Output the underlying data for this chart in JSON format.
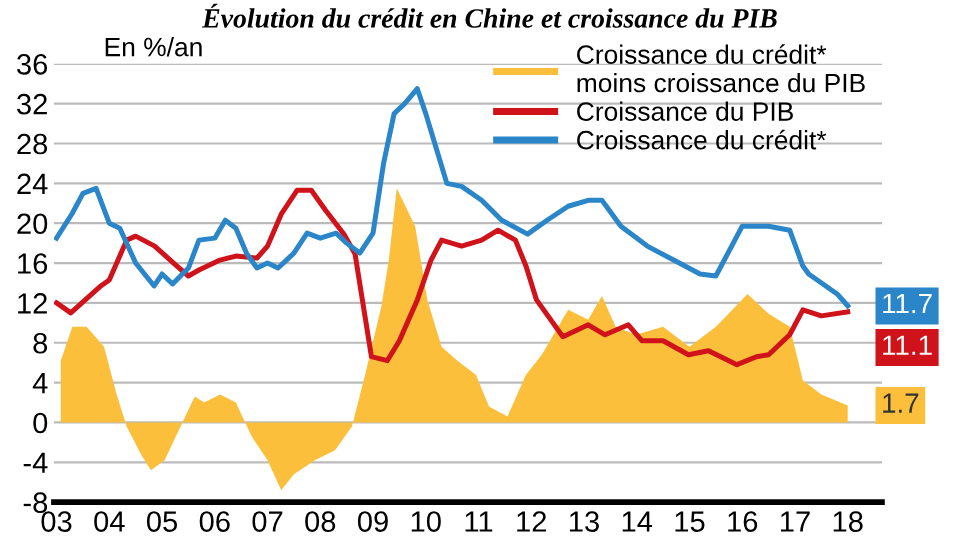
{
  "chart_data": {
    "type": "line",
    "title": "Évolution du crédit en Chine et croissance du PIB",
    "ylabel": "En %/an",
    "xlim": [
      2002.95,
      2018.65
    ],
    "ylim": [
      -8,
      36
    ],
    "xticks": [
      {
        "value": 2003,
        "label": "03"
      },
      {
        "value": 2004,
        "label": "04"
      },
      {
        "value": 2005,
        "label": "05"
      },
      {
        "value": 2006,
        "label": "06"
      },
      {
        "value": 2007,
        "label": "07"
      },
      {
        "value": 2008,
        "label": "08"
      },
      {
        "value": 2009,
        "label": "09"
      },
      {
        "value": 2010,
        "label": "10"
      },
      {
        "value": 2011,
        "label": "11"
      },
      {
        "value": 2012,
        "label": "12"
      },
      {
        "value": 2013,
        "label": "13"
      },
      {
        "value": 2014,
        "label": "14"
      },
      {
        "value": 2015,
        "label": "15"
      },
      {
        "value": 2016,
        "label": "16"
      },
      {
        "value": 2017,
        "label": "17"
      },
      {
        "value": 2018,
        "label": "18"
      }
    ],
    "yticks": [
      -8,
      -4,
      0,
      4,
      8,
      12,
      16,
      20,
      24,
      28,
      32,
      36
    ],
    "grid": "y",
    "legend": "top right",
    "line_style": "solid",
    "series": [
      {
        "name": "Croissance du crédit* moins croissance du PIB",
        "type": "area",
        "color": "#fbbf3c",
        "x": [
          2003.08,
          2003.3,
          2003.57,
          2003.9,
          2004.14,
          2004.33,
          2004.6,
          2004.79,
          2005.05,
          2005.28,
          2005.62,
          2005.8,
          2006.1,
          2006.4,
          2006.7,
          2007.0,
          2007.26,
          2007.5,
          2007.9,
          2008.28,
          2008.6,
          2008.85,
          2009.16,
          2009.3,
          2009.45,
          2009.8,
          2010.03,
          2010.3,
          2010.6,
          2010.95,
          2011.2,
          2011.55,
          2011.9,
          2012.2,
          2012.7,
          2013.08,
          2013.34,
          2013.6,
          2013.98,
          2014.5,
          2015.0,
          2015.5,
          2015.74,
          2016.1,
          2016.5,
          2016.9,
          2017.15,
          2017.5,
          2018.0
        ],
        "values": [
          6.2,
          9.6,
          9.6,
          7.6,
          2.8,
          -0.4,
          -3.2,
          -4.8,
          -3.8,
          -1.2,
          2.6,
          2.0,
          2.8,
          2.0,
          -1.4,
          -3.8,
          -6.8,
          -5.2,
          -3.8,
          -2.8,
          -0.4,
          4.8,
          11.7,
          16.3,
          23.5,
          19.7,
          12.3,
          7.6,
          6.2,
          4.8,
          1.6,
          0.6,
          4.8,
          6.8,
          11.3,
          10.3,
          12.7,
          9.6,
          8.8,
          9.6,
          7.6,
          9.6,
          10.9,
          12.9,
          10.9,
          9.6,
          4.2,
          2.8,
          1.7
        ],
        "value_labels": [
          null,
          null,
          null,
          null,
          null,
          null,
          null,
          null,
          null,
          null,
          null,
          null,
          null,
          null,
          null,
          null,
          null,
          null,
          null,
          null,
          null,
          null,
          null,
          null,
          null,
          null,
          null,
          null,
          null,
          null,
          null,
          null,
          null,
          null,
          null,
          null,
          null,
          null,
          null,
          null,
          null,
          null,
          null,
          null,
          null,
          null,
          null,
          null,
          "1.7"
        ]
      },
      {
        "name": "Croissance du PIB",
        "color": "#d0121b",
        "x": [
          2003.0,
          2003.27,
          2003.84,
          2004.0,
          2004.33,
          2004.5,
          2004.86,
          2005.24,
          2005.5,
          2005.7,
          2006.1,
          2006.4,
          2006.8,
          2007.0,
          2007.26,
          2007.56,
          2007.83,
          2008.1,
          2008.45,
          2008.66,
          2008.97,
          2009.27,
          2009.5,
          2009.84,
          2010.1,
          2010.3,
          2010.68,
          2011.06,
          2011.37,
          2011.7,
          2011.9,
          2012.1,
          2012.6,
          2013.08,
          2013.4,
          2013.84,
          2014.1,
          2014.5,
          2014.98,
          2015.36,
          2015.9,
          2016.27,
          2016.5,
          2016.9,
          2017.15,
          2017.5,
          2018.0
        ],
        "values": [
          12.0,
          11.0,
          13.7,
          14.3,
          18.3,
          18.7,
          17.7,
          15.9,
          14.7,
          15.3,
          16.3,
          16.7,
          16.5,
          17.7,
          20.9,
          23.3,
          23.3,
          21.3,
          18.9,
          16.9,
          6.6,
          6.2,
          8.2,
          12.3,
          16.3,
          18.3,
          17.7,
          18.3,
          19.3,
          18.3,
          15.7,
          12.3,
          8.6,
          9.8,
          8.8,
          9.8,
          8.2,
          8.2,
          6.8,
          7.2,
          5.8,
          6.6,
          6.8,
          8.8,
          11.3,
          10.7,
          11.1
        ],
        "value_labels": [
          null,
          null,
          null,
          null,
          null,
          null,
          null,
          null,
          null,
          null,
          null,
          null,
          null,
          null,
          null,
          null,
          null,
          null,
          null,
          null,
          null,
          null,
          null,
          null,
          null,
          null,
          null,
          null,
          null,
          null,
          null,
          null,
          null,
          null,
          null,
          null,
          null,
          null,
          null,
          null,
          null,
          null,
          null,
          null,
          null,
          null,
          "11.1"
        ]
      },
      {
        "name": "Croissance du crédit*",
        "color": "#2a86c8",
        "x": [
          2003.0,
          2003.3,
          2003.5,
          2003.75,
          2004.0,
          2004.2,
          2004.5,
          2004.85,
          2005.0,
          2005.2,
          2005.5,
          2005.7,
          2006.0,
          2006.2,
          2006.4,
          2006.6,
          2006.8,
          2007.0,
          2007.2,
          2007.5,
          2007.75,
          2008.0,
          2008.3,
          2008.5,
          2008.75,
          2009.0,
          2009.2,
          2009.4,
          2009.6,
          2009.84,
          2010.0,
          2010.2,
          2010.4,
          2010.68,
          2011.06,
          2011.44,
          2011.93,
          2012.3,
          2012.7,
          2013.08,
          2013.34,
          2013.7,
          2014.2,
          2014.7,
          2015.2,
          2015.5,
          2016.0,
          2016.5,
          2016.9,
          2017.15,
          2017.26,
          2017.8,
          2018.0
        ],
        "values": [
          18.5,
          21.0,
          23.0,
          23.5,
          20.0,
          19.5,
          16.0,
          13.7,
          14.9,
          13.9,
          15.5,
          18.3,
          18.5,
          20.3,
          19.5,
          17.0,
          15.5,
          16.0,
          15.5,
          17.0,
          19.0,
          18.5,
          19.0,
          18.0,
          17.0,
          19.0,
          26.0,
          31.0,
          32.0,
          33.5,
          31.0,
          27.5,
          24.0,
          23.7,
          22.3,
          20.3,
          18.9,
          20.3,
          21.7,
          22.3,
          22.3,
          19.7,
          17.7,
          16.3,
          14.9,
          14.7,
          19.7,
          19.7,
          19.3,
          15.7,
          14.9,
          12.9,
          11.7
        ],
        "value_labels": [
          null,
          null,
          null,
          null,
          null,
          null,
          null,
          null,
          null,
          null,
          null,
          null,
          null,
          null,
          null,
          null,
          null,
          null,
          null,
          null,
          null,
          null,
          null,
          null,
          null,
          null,
          null,
          null,
          null,
          null,
          null,
          null,
          null,
          null,
          null,
          null,
          null,
          null,
          null,
          null,
          null,
          null,
          null,
          null,
          null,
          null,
          null,
          null,
          null,
          null,
          null,
          null,
          "11.7"
        ]
      }
    ]
  }
}
